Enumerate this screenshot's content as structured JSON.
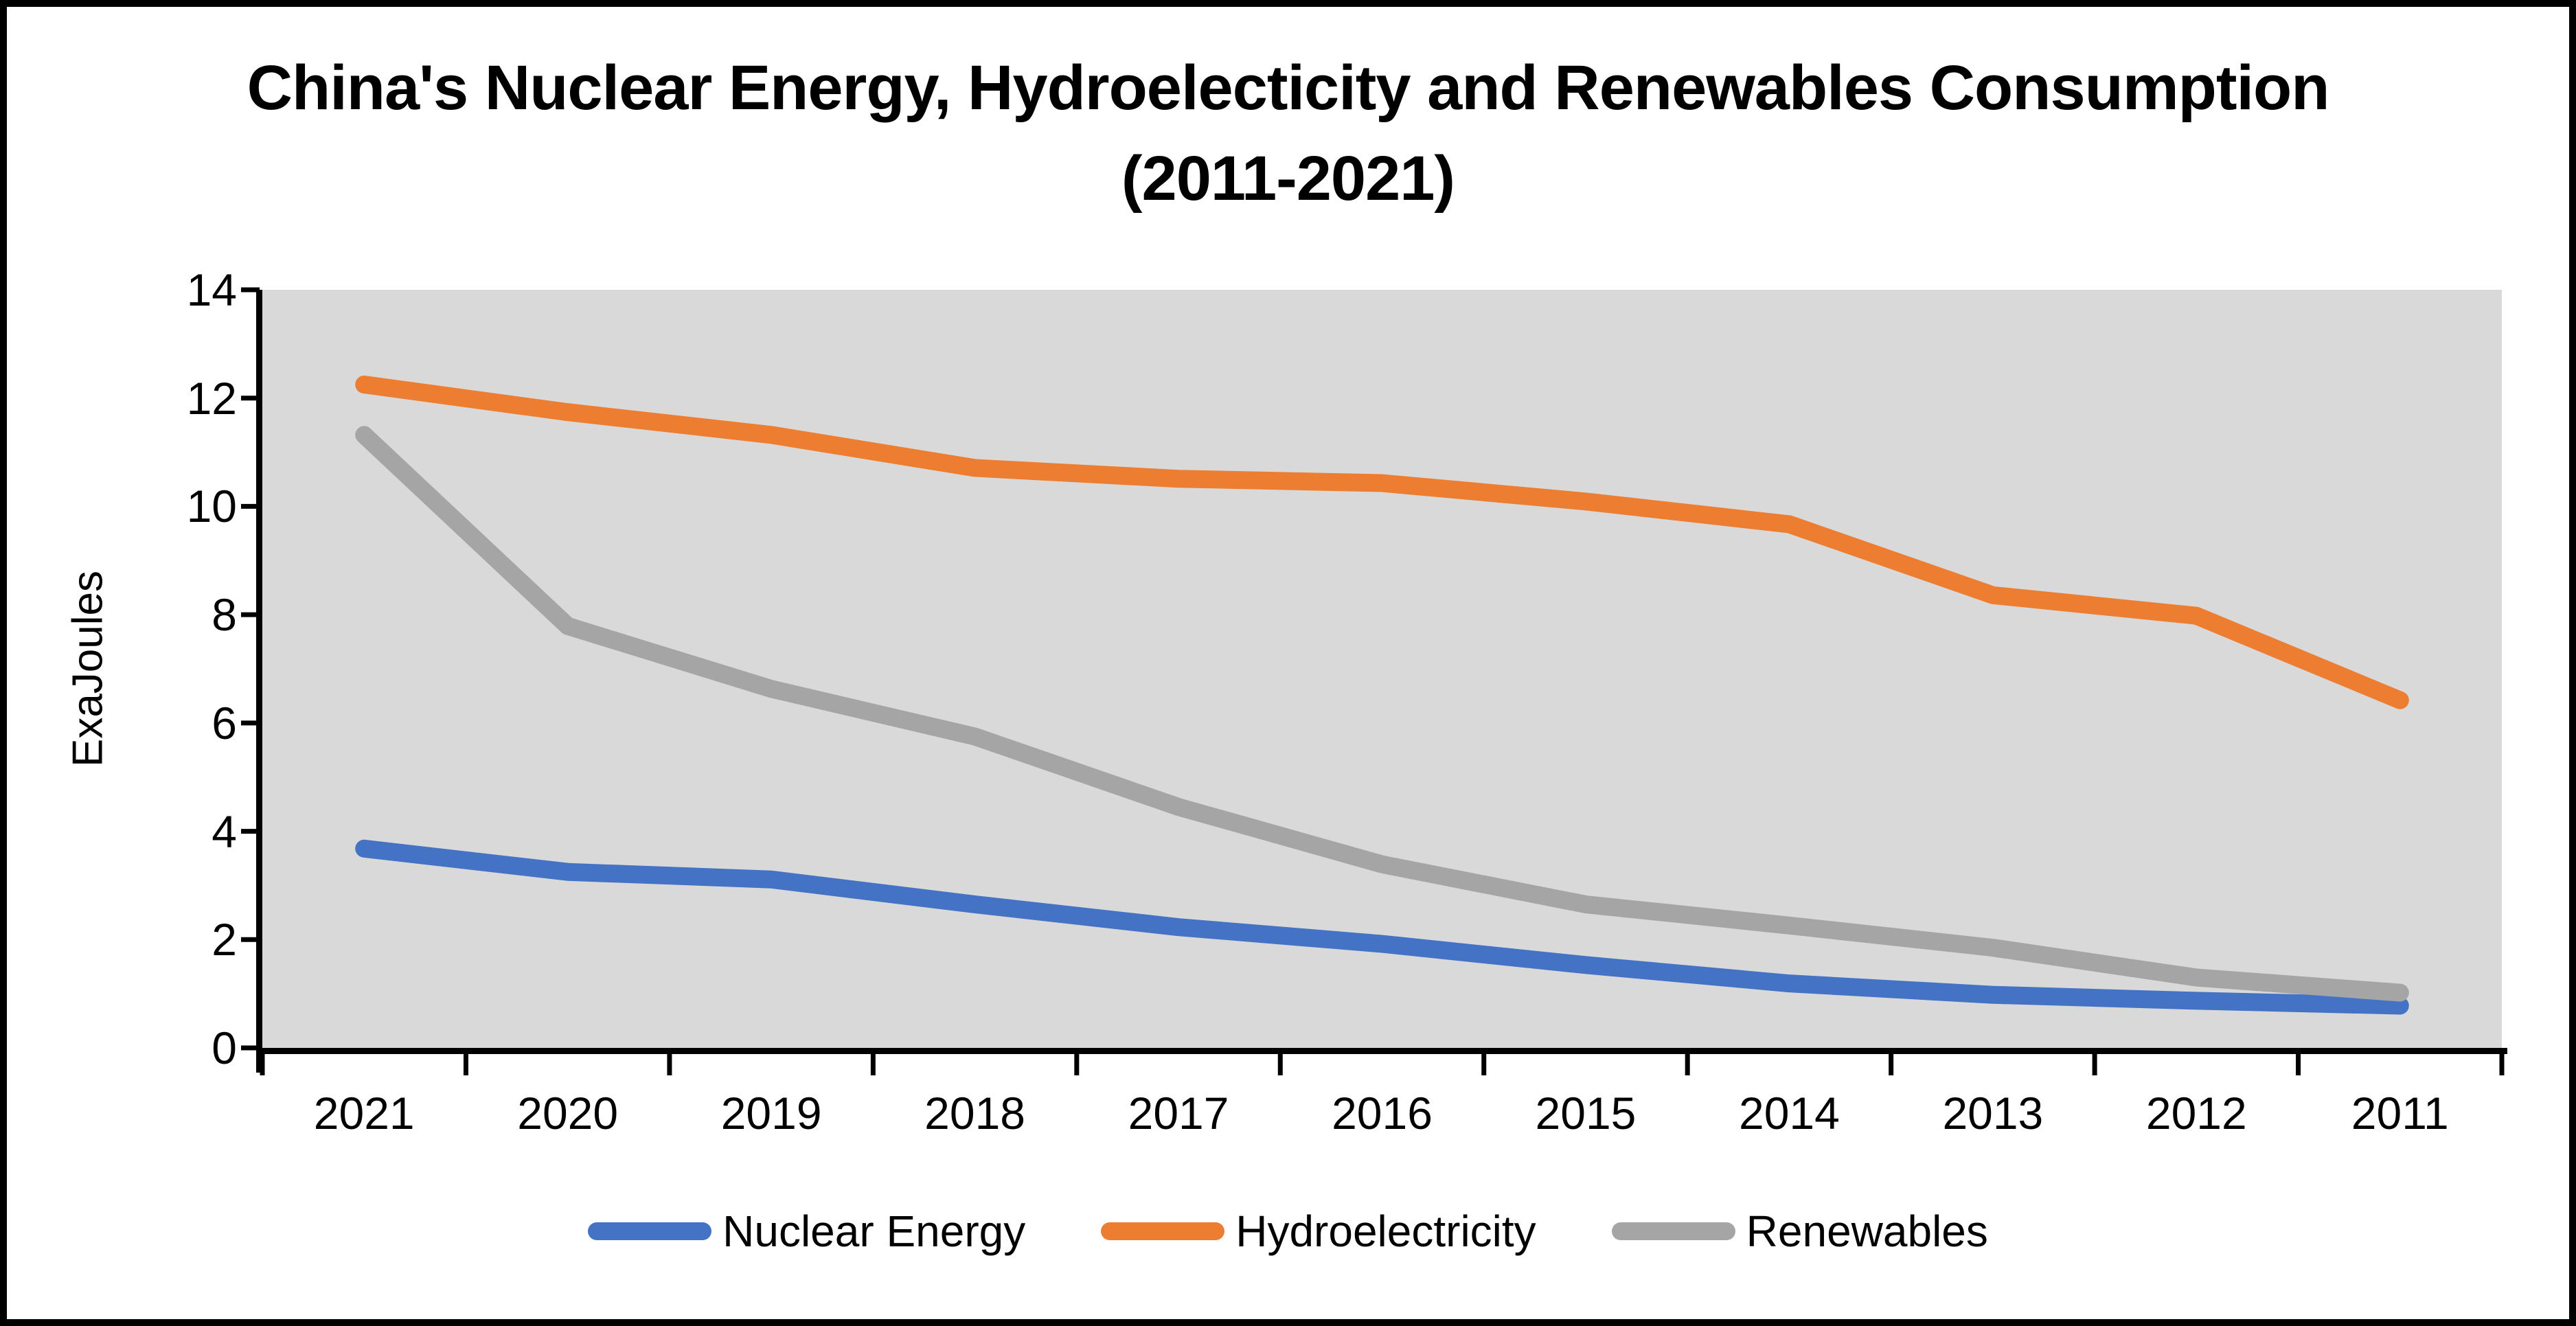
{
  "title": {
    "line1": "China's Nuclear Energy, Hydroelecticity and Renewables Consumption",
    "line2": "(2011-2021)"
  },
  "y_axis": {
    "label": "ExaJoules",
    "tick_labels": [
      "0",
      "2",
      "4",
      "6",
      "8",
      "10",
      "12",
      "14"
    ],
    "min": 0,
    "max": 14,
    "tick_step": 2
  },
  "x_axis": {
    "categories": [
      "2021",
      "2020",
      "2019",
      "2018",
      "2017",
      "2016",
      "2015",
      "2014",
      "2013",
      "2012",
      "2011"
    ]
  },
  "legend": {
    "position": "bottom",
    "items": [
      {
        "label": "Nuclear Energy",
        "color": "#4472C4"
      },
      {
        "label": "Hydroelectricity",
        "color": "#ED7D31"
      },
      {
        "label": "Renewables",
        "color": "#A5A5A5"
      }
    ]
  },
  "colors": {
    "plot_background": "#D9D9D9",
    "axis": "#000000",
    "text": "#000000",
    "frame_border": "#000000"
  },
  "chart_data": {
    "type": "line",
    "title": "China's Nuclear Energy, Hydroelecticity and Renewables Consumption (2011-2021)",
    "ylabel": "ExaJoules",
    "xlabel": "",
    "ylim": [
      0,
      14
    ],
    "grid": false,
    "legend_position": "bottom",
    "plot_background": "#D9D9D9",
    "categories": [
      "2021",
      "2020",
      "2019",
      "2018",
      "2017",
      "2016",
      "2015",
      "2014",
      "2013",
      "2012",
      "2011"
    ],
    "series": [
      {
        "name": "Nuclear Energy",
        "color": "#4472C4",
        "values": [
          3.68,
          3.25,
          3.11,
          2.65,
          2.23,
          1.92,
          1.53,
          1.19,
          0.98,
          0.87,
          0.78
        ]
      },
      {
        "name": "Hydroelectricity",
        "color": "#ED7D31",
        "values": [
          12.25,
          11.74,
          11.32,
          10.71,
          10.51,
          10.43,
          10.09,
          9.67,
          8.36,
          7.98,
          6.42
        ]
      },
      {
        "name": "Renewables",
        "color": "#A5A5A5",
        "values": [
          11.32,
          7.79,
          6.63,
          5.75,
          4.45,
          3.39,
          2.65,
          2.26,
          1.85,
          1.3,
          1.02
        ]
      }
    ]
  }
}
